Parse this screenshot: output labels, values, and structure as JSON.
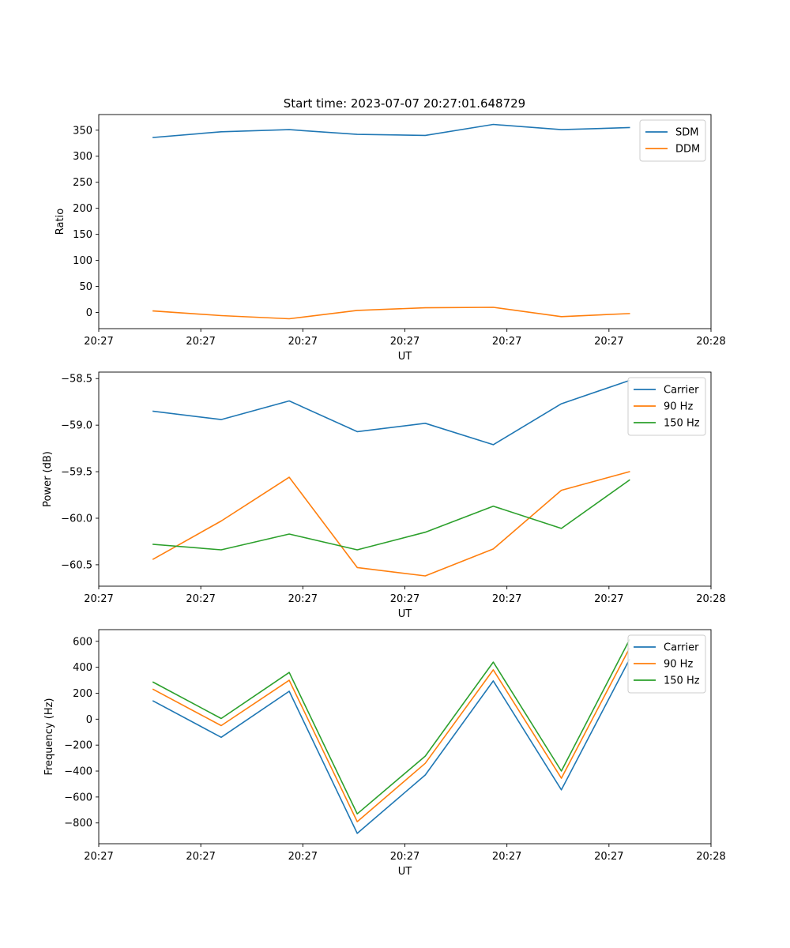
{
  "figure": {
    "title": "Start time: 2023-07-07 20:27:01.648729"
  },
  "chart_data": [
    {
      "type": "line",
      "title": "Start time: 2023-07-07 20:27:01.648729",
      "xlabel": "UT",
      "ylabel": "Ratio",
      "x": [
        1,
        2,
        3,
        4,
        5,
        6,
        7,
        8
      ],
      "xlim": [
        0.2,
        9.2
      ],
      "xticks": [
        0.2,
        1.7,
        3.2,
        4.7,
        6.2,
        7.7,
        9.2
      ],
      "xtick_labels": [
        "20:27",
        "20:27",
        "20:27",
        "20:27",
        "20:27",
        "20:27",
        "20:28"
      ],
      "ylim": [
        -31,
        380
      ],
      "yticks": [
        0,
        50,
        100,
        150,
        200,
        250,
        300,
        350
      ],
      "ytick_labels": [
        "0",
        "50",
        "100",
        "150",
        "200",
        "250",
        "300",
        "350"
      ],
      "legend_position": "top-right",
      "series": [
        {
          "name": "SDM",
          "color": "#1f77b4",
          "values": [
            336,
            347,
            351,
            342,
            340,
            361,
            351,
            355
          ]
        },
        {
          "name": "DDM",
          "color": "#ff7f0e",
          "values": [
            3,
            -6,
            -12,
            4,
            9,
            10,
            -8,
            -2
          ]
        }
      ]
    },
    {
      "type": "line",
      "title": "",
      "xlabel": "UT",
      "ylabel": "Power (dB)",
      "x": [
        1,
        2,
        3,
        4,
        5,
        6,
        7,
        8
      ],
      "xlim": [
        0.2,
        9.2
      ],
      "xticks": [
        0.2,
        1.7,
        3.2,
        4.7,
        6.2,
        7.7,
        9.2
      ],
      "xtick_labels": [
        "20:27",
        "20:27",
        "20:27",
        "20:27",
        "20:27",
        "20:27",
        "20:28"
      ],
      "ylim": [
        -60.73,
        -58.43
      ],
      "yticks": [
        -60.5,
        -60.0,
        -59.5,
        -59.0,
        -58.5
      ],
      "ytick_labels": [
        "−60.5",
        "−60.0",
        "−59.5",
        "−59.0",
        "−58.5"
      ],
      "legend_position": "top-right",
      "series": [
        {
          "name": "Carrier",
          "color": "#1f77b4",
          "values": [
            -58.85,
            -58.94,
            -58.74,
            -59.07,
            -58.98,
            -59.21,
            -58.77,
            -58.52
          ]
        },
        {
          "name": "90 Hz",
          "color": "#ff7f0e",
          "values": [
            -60.44,
            -60.03,
            -59.56,
            -60.53,
            -60.62,
            -60.33,
            -59.7,
            -59.5
          ]
        },
        {
          "name": "150 Hz",
          "color": "#2ca02c",
          "values": [
            -60.28,
            -60.34,
            -60.17,
            -60.34,
            -60.15,
            -59.87,
            -60.11,
            -59.59
          ]
        }
      ]
    },
    {
      "type": "line",
      "title": "",
      "xlabel": "UT",
      "ylabel": "Frequency (Hz)",
      "x": [
        1,
        2,
        3,
        4,
        5,
        6,
        7,
        8
      ],
      "xlim": [
        0.2,
        9.2
      ],
      "xticks": [
        0.2,
        1.7,
        3.2,
        4.7,
        6.2,
        7.7,
        9.2
      ],
      "xtick_labels": [
        "20:27",
        "20:27",
        "20:27",
        "20:27",
        "20:27",
        "20:27",
        "20:28"
      ],
      "ylim": [
        -960,
        690
      ],
      "yticks": [
        -800,
        -600,
        -400,
        -200,
        0,
        200,
        400,
        600
      ],
      "ytick_labels": [
        "−800",
        "−600",
        "−400",
        "−200",
        "0",
        "200",
        "400",
        "600"
      ],
      "legend_position": "top-right",
      "series": [
        {
          "name": "Carrier",
          "color": "#1f77b4",
          "values": [
            140,
            -140,
            215,
            -880,
            -430,
            295,
            -545,
            460
          ]
        },
        {
          "name": "90 Hz",
          "color": "#ff7f0e",
          "values": [
            230,
            -50,
            300,
            -790,
            -340,
            380,
            -455,
            545
          ]
        },
        {
          "name": "150 Hz",
          "color": "#2ca02c",
          "values": [
            285,
            5,
            360,
            -730,
            -285,
            440,
            -400,
            610
          ]
        }
      ]
    }
  ]
}
